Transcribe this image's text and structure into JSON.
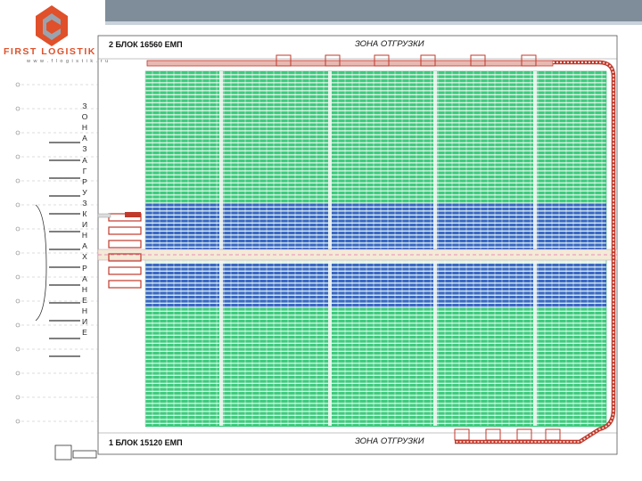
{
  "logo": {
    "brand": "FIRST LOGISTIK",
    "url": "w w w . f l o g i s t i k . r u"
  },
  "plan": {
    "block_top": "2 БЛОК 16560 ЕМП",
    "block_bottom": "1 БЛОК 15120 ЕМП",
    "zone_shipping_top": "ЗОНА ОТГРУЗКИ",
    "zone_shipping_bottom": "ЗОНА ОТГРУЗКИ",
    "zone_loading_storage": "З О Н А З А Г Р У З К И Н А Х Р А Н Е Н И Е"
  },
  "colors": {
    "rack_green": "#22c46b",
    "rack_blue": "#1f4fbf",
    "conveyor_red": "#c0392b",
    "aisle": "#f3ead7",
    "header_bar": "#7f8c99"
  }
}
